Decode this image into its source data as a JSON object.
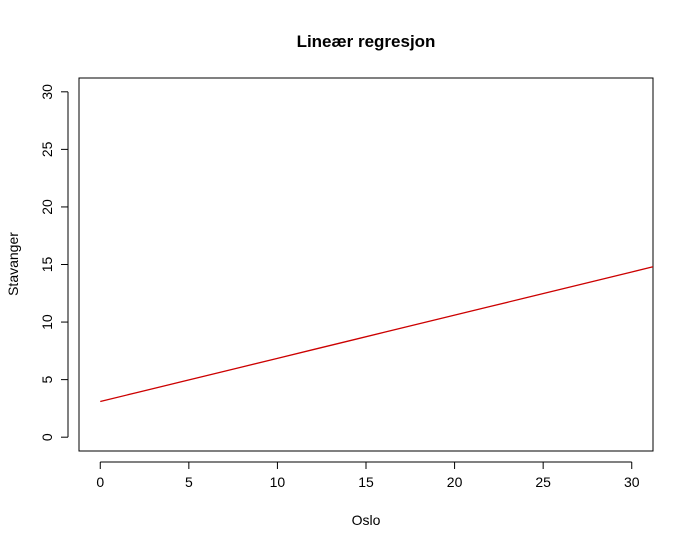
{
  "chart_data": {
    "type": "line",
    "title": "Lineær regresjon",
    "xlabel": "Oslo",
    "ylabel": "Stavanger",
    "xlim": [
      -1.2,
      31.2
    ],
    "ylim": [
      -1.2,
      31.2
    ],
    "x_ticks": [
      0,
      5,
      10,
      15,
      20,
      25,
      30
    ],
    "y_ticks": [
      0,
      5,
      10,
      15,
      20,
      25,
      30
    ],
    "x_tick_labels": [
      "0",
      "5",
      "10",
      "15",
      "20",
      "25",
      "30"
    ],
    "y_tick_labels": [
      "0",
      "5",
      "10",
      "15",
      "20",
      "25",
      "30"
    ],
    "grid": false,
    "legend": "none",
    "series": [
      {
        "color": "#cc0000",
        "x": [
          0,
          2,
          4,
          6,
          8,
          10,
          12,
          14,
          16,
          18,
          20,
          22,
          24,
          26,
          28,
          30,
          31.2
        ],
        "y": [
          3.1,
          3.85,
          4.6,
          5.35,
          6.1,
          6.85,
          7.6,
          8.35,
          9.1,
          9.85,
          10.6,
          11.35,
          12.1,
          12.85,
          13.6,
          14.35,
          14.8
        ]
      }
    ]
  }
}
